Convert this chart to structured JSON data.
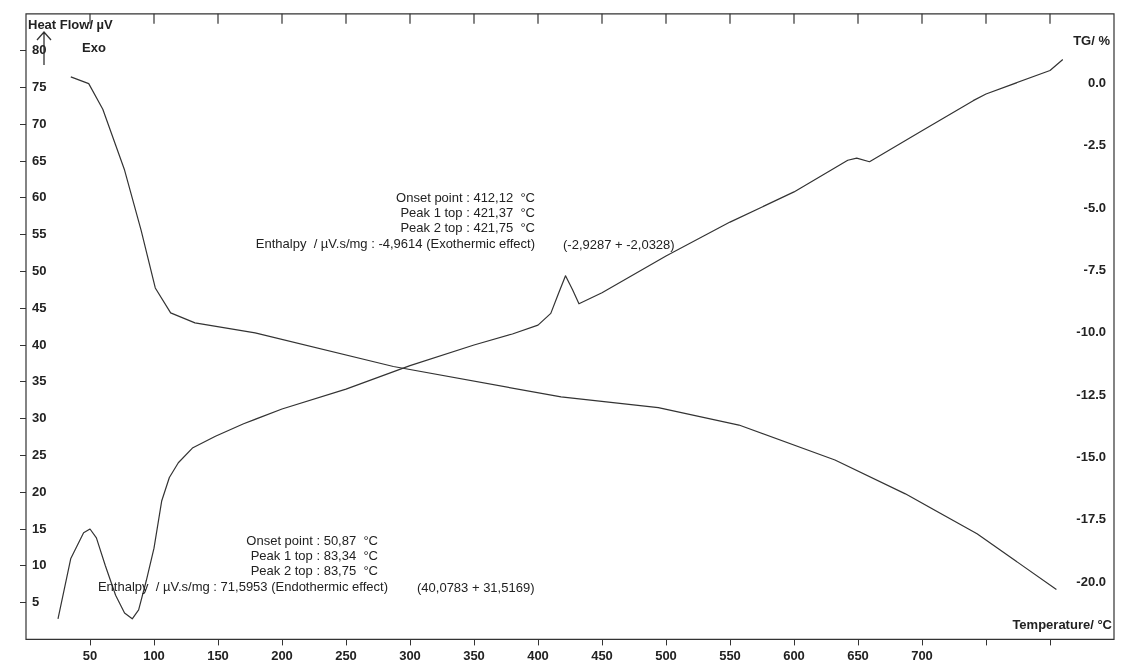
{
  "chart_data": {
    "type": "line",
    "xlabel": "Temperature/ °C",
    "ylabel": "Heat Flow/ µV",
    "y2label": "TG/ %",
    "xlim": [
      0,
      850
    ],
    "xticks": [
      50,
      100,
      150,
      200,
      250,
      300,
      350,
      400,
      450,
      500,
      550,
      600,
      650,
      700,
      {
        "value": 750,
        "label": null
      },
      {
        "value": 800,
        "label": null
      }
    ],
    "ylim": [
      0,
      85
    ],
    "yticks": [
      5,
      10,
      15,
      20,
      25,
      30,
      35,
      40,
      45,
      50,
      55,
      60,
      65,
      70,
      75,
      80
    ],
    "y2lim": [
      -22.3,
      2.8
    ],
    "y2ticks": [
      {
        "value": 0,
        "label": "0.0"
      },
      -2.5,
      {
        "value": -5,
        "label": "-5.0"
      },
      -7.5,
      {
        "value": -10,
        "label": "-10.0"
      },
      -12.5,
      {
        "value": -15,
        "label": "-15.0"
      },
      -17.5,
      {
        "value": -20,
        "label": "-20.0"
      }
    ],
    "grid": false,
    "legend": false,
    "marker": "none",
    "line_style": "solid",
    "series": [
      {
        "color": "#333333",
        "x": [
          25,
          35,
          45,
          50,
          55,
          62,
          70,
          77,
          83,
          88,
          94,
          100,
          106,
          112,
          119,
          130,
          148,
          170,
          200,
          250,
          300,
          350,
          380,
          400,
          410,
          416,
          421.5,
          427,
          432,
          450,
          500,
          550,
          600,
          642,
          649,
          659,
          700,
          740,
          750,
          800,
          810
        ],
        "values": [
          2.8,
          11,
          14.5,
          15,
          13.8,
          10,
          6,
          3.6,
          2.8,
          4,
          8,
          12.4,
          18.8,
          22,
          24,
          26,
          27.6,
          29.3,
          31.3,
          34,
          37.2,
          40,
          41.5,
          42.7,
          44.3,
          47,
          49.4,
          47.5,
          45.6,
          47.1,
          52.1,
          56.7,
          60.8,
          65.1,
          65.4,
          64.9,
          69.1,
          73.2,
          74.1,
          77.3,
          78.8
        ]
      },
      {
        "color": "#333333",
        "axis": "y2",
        "x": [
          35,
          49,
          60,
          77,
          90,
          101,
          113,
          132,
          179,
          287,
          418,
          494,
          557,
          632,
          687,
          743,
          805
        ],
        "values": [
          0.27,
          0,
          -1.03,
          -3.47,
          -5.9,
          -8.2,
          -9.2,
          -9.6,
          -10,
          -11.35,
          -12.57,
          -13,
          -13.7,
          -15.1,
          -16.46,
          -18.06,
          -20.3
        ]
      }
    ],
    "annotations": [
      "Exo",
      "Onset point : 412,12  °C",
      "Peak 1 top : 421,37  °C",
      "Peak 2 top : 421,75  °C",
      "Enthalpy  / µV.s/mg : -4,9614 (Exothermic effect)",
      "(-2,9287 + -2,0328)",
      "Onset point : 50,87  °C",
      "Peak 1 top : 83,34  °C",
      "Peak 2 top : 83,75  °C",
      "Enthalpy  / µV.s/mg : 71,5953 (Endothermic effect)",
      "(40,0783 + 31,5169)"
    ]
  }
}
